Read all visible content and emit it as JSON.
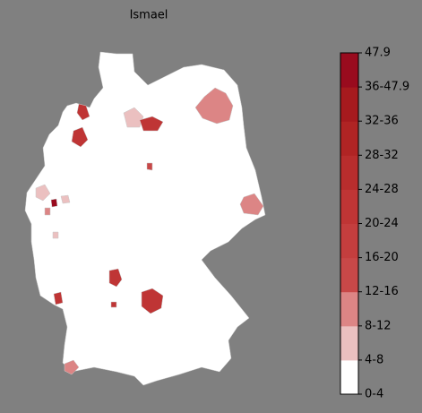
{
  "title": "Ismael",
  "legend": {
    "labels": [
      "0-4",
      "4-8",
      "8-12",
      "12-16",
      "16-20",
      "20-24",
      "24-28",
      "28-32",
      "32-36",
      "36-47.9",
      "47.9"
    ],
    "colors": [
      "#ffffff",
      "#ebc0c0",
      "#dc8585",
      "#c84848",
      "#c43e3e",
      "#bf3535",
      "#b82d2d",
      "#b02424",
      "#a61a1e",
      "#990b1e"
    ]
  }
}
